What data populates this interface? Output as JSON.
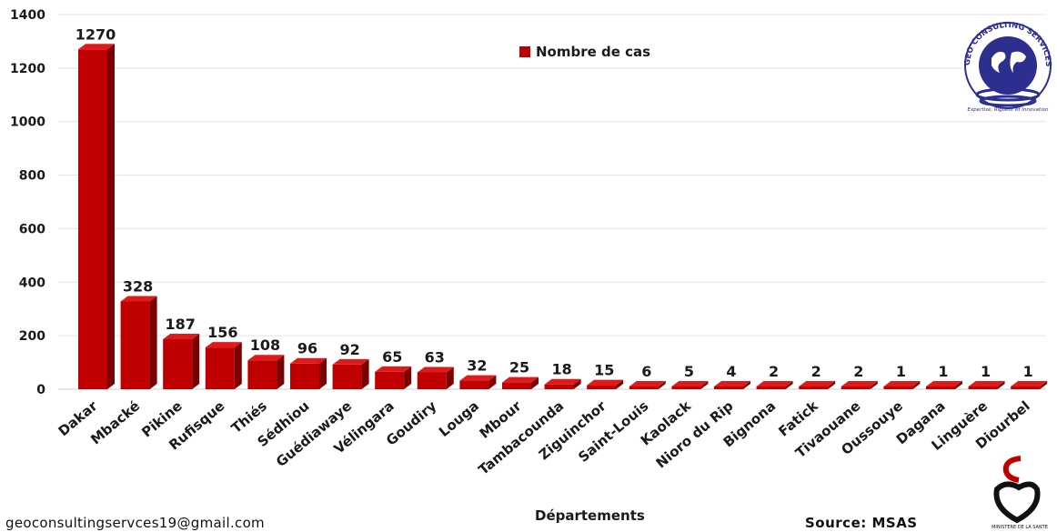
{
  "chart_data": {
    "type": "bar",
    "categories": [
      "Dakar",
      "Mbacké",
      "Pikine",
      "Rufisque",
      "Thiés",
      "Sédhiou",
      "Guédiawaye",
      "Vélingara",
      "Goudiry",
      "Louga",
      "Mbour",
      "Tambacounda",
      "Ziguinchor",
      "Saint-Louis",
      "Kaolack",
      "Nioro du Rip",
      "Bignona",
      "Fatick",
      "Tivaouane",
      "Oussouye",
      "Dagana",
      "Linguère",
      "Diourbel"
    ],
    "values": [
      1270,
      328,
      187,
      156,
      108,
      96,
      92,
      65,
      63,
      32,
      25,
      18,
      15,
      6,
      5,
      4,
      2,
      2,
      2,
      1,
      1,
      1,
      1
    ],
    "series": [
      {
        "name": "Nombre de cas"
      }
    ],
    "xlabel": "Départements",
    "ylabel": "",
    "ylim": [
      0,
      1400
    ],
    "yticks": [
      0,
      200,
      400,
      600,
      800,
      1000,
      1200,
      1400
    ],
    "grid": true,
    "legend": "top-center",
    "bar_color": "#c00000",
    "bar_side_color": "#7a0000",
    "bar_top_color": "#e01a1a"
  },
  "footer": {
    "email": "geoconsultingservces19@gmail.com",
    "source": "Source: MSAS"
  },
  "logos": {
    "geo_logo_ring_text": "GEO CONSULTING SERVICES",
    "geo_logo_tagline": "Expertise, Rigueur et Innovation",
    "ministry_logo_text": "MINISTERE DE LA SANTE"
  }
}
